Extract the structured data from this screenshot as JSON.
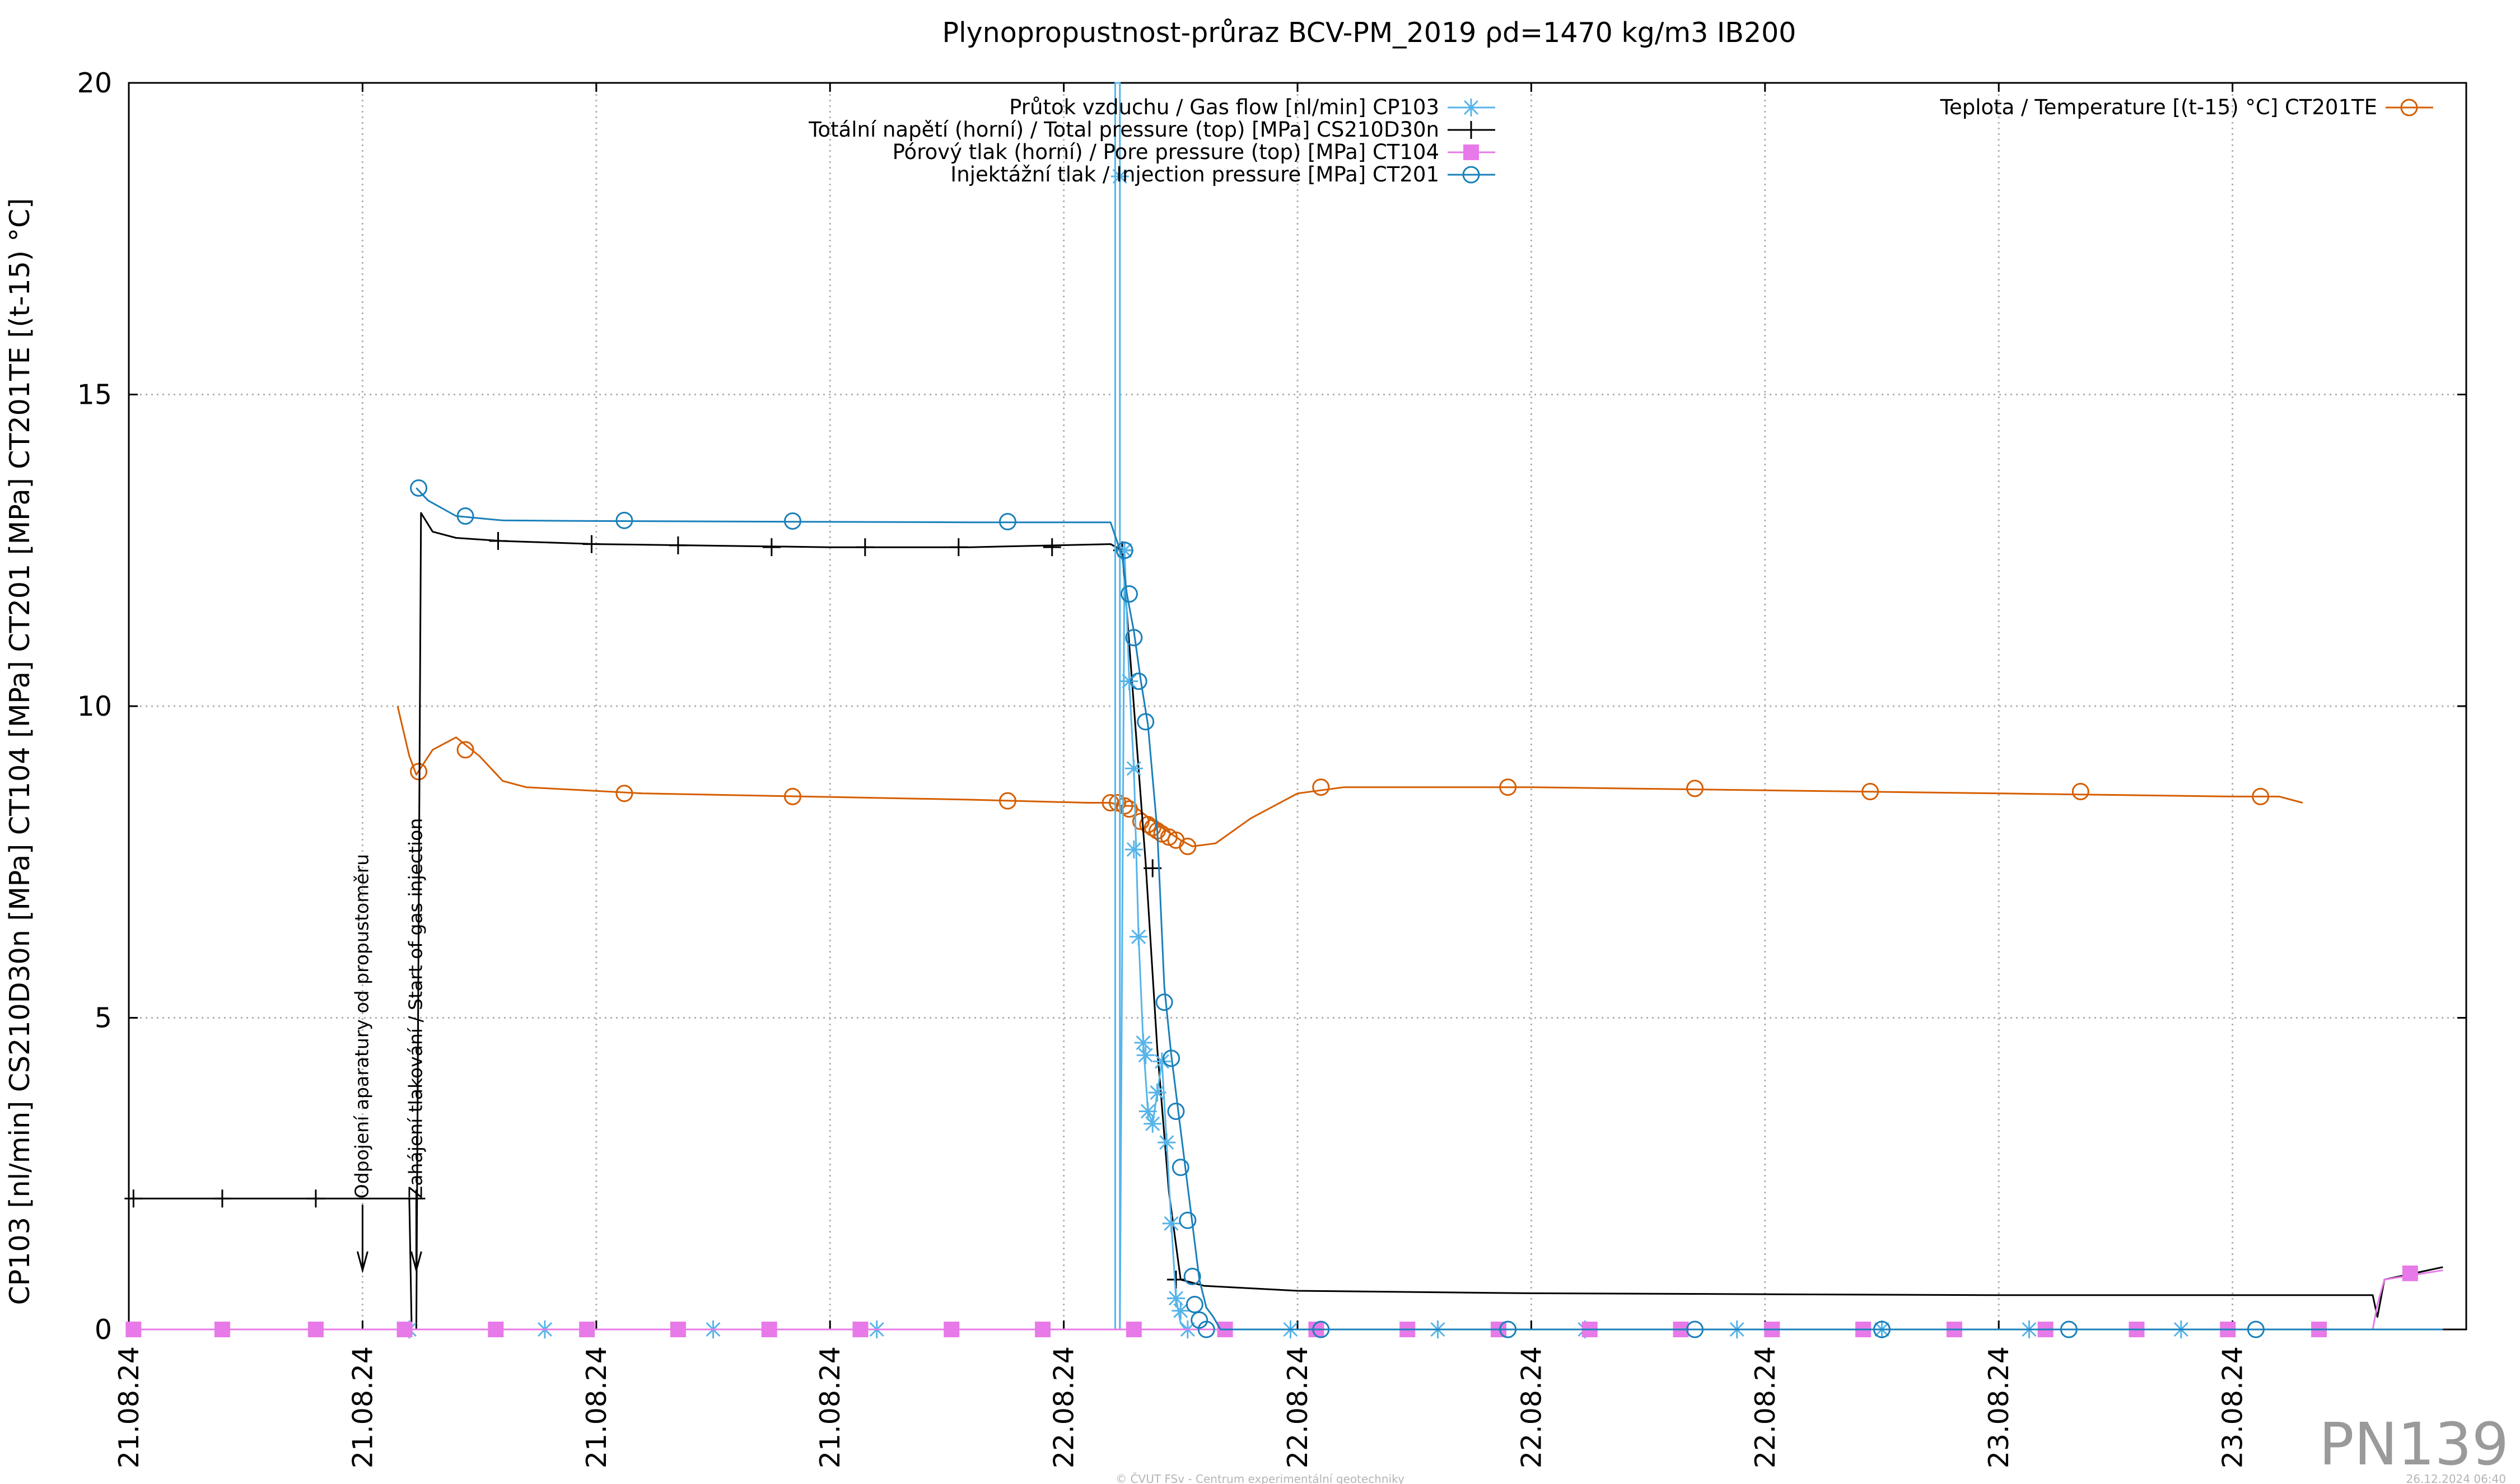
{
  "chart_data": {
    "type": "line",
    "title": "Plynopropustnost-průraz BCV-PM_2019 ρd=1470 kg/m3 IB200",
    "ylabel": "CP103 [nl/min] CS210D30n [MPa] CT104 [MPa] CT201 [MPa] CT201TE [(t-15) °C]",
    "xlabel": "",
    "ylim": [
      0,
      20
    ],
    "xlim": [
      0,
      10
    ],
    "grid": true,
    "legend_position": "top",
    "y_ticks": [
      "0",
      "5",
      "10",
      "15",
      "20"
    ],
    "x_tick_labels": [
      "21.08.24",
      "21.08.24",
      "21.08.24",
      "21.08.24",
      "22.08.24",
      "22.08.24",
      "22.08.24",
      "22.08.24",
      "23.08.24",
      "23.08.24"
    ],
    "x_tick_positions": [
      0,
      1,
      2,
      3,
      4,
      5,
      6,
      7,
      8,
      9
    ],
    "annotations": [
      {
        "text": "Odpojení aparatury od propustoměru",
        "x": 1.0
      },
      {
        "text": "Zahájení tlakování / Start of gas injection",
        "x": 1.23
      }
    ],
    "badge": "PN139",
    "footer_left": "© ČVUT FSv - Centrum experimentální geotechniky",
    "footer_right": "26.12.2024 06:40",
    "series": [
      {
        "name": "Průtok vzduchu / Gas flow [nl/min] CP103",
        "color": "#56b4e9",
        "marker": "star",
        "line": [
          [
            0,
            0
          ],
          [
            4.2,
            0
          ],
          [
            4.22,
            0
          ],
          [
            4.22,
            20
          ],
          [
            4.24,
            20
          ],
          [
            4.24,
            0
          ],
          [
            4.26,
            12.5
          ],
          [
            4.28,
            10.4
          ],
          [
            4.3,
            9
          ],
          [
            4.32,
            6.3
          ],
          [
            4.34,
            4.6
          ],
          [
            4.36,
            3.5
          ],
          [
            4.38,
            3.3
          ],
          [
            4.4,
            3.8
          ],
          [
            4.42,
            4.3
          ],
          [
            4.44,
            3
          ],
          [
            4.46,
            1.7
          ],
          [
            4.48,
            0.5
          ],
          [
            4.5,
            0.1
          ],
          [
            4.52,
            0
          ],
          [
            9.9,
            0
          ]
        ],
        "markers": [
          [
            1.2,
            0
          ],
          [
            1.78,
            0
          ],
          [
            2.5,
            0
          ],
          [
            3.2,
            0
          ],
          [
            4.26,
            12.5
          ],
          [
            4.24,
            18.5
          ],
          [
            4.28,
            10.4
          ],
          [
            4.3,
            9
          ],
          [
            4.3,
            7.7
          ],
          [
            4.32,
            6.3
          ],
          [
            4.34,
            4.6
          ],
          [
            4.35,
            4.4
          ],
          [
            4.36,
            3.5
          ],
          [
            4.38,
            3.3
          ],
          [
            4.4,
            3.8
          ],
          [
            4.42,
            4.3
          ],
          [
            4.44,
            3
          ],
          [
            4.46,
            1.7
          ],
          [
            4.48,
            0.5
          ],
          [
            4.5,
            0.3
          ],
          [
            4.53,
            0
          ],
          [
            4.97,
            0
          ],
          [
            5.6,
            0
          ],
          [
            6.23,
            0
          ],
          [
            6.88,
            0
          ],
          [
            7.5,
            0
          ],
          [
            8.13,
            0
          ],
          [
            8.78,
            0
          ]
        ]
      },
      {
        "name": "Totální napětí (horní) / Total pressure (top) [MPa] CS210D30n",
        "color": "#000000",
        "marker": "plus",
        "line": [
          [
            0,
            2.1
          ],
          [
            1.2,
            2.1
          ],
          [
            1.21,
            0
          ],
          [
            1.23,
            0
          ],
          [
            1.25,
            13.1
          ],
          [
            1.3,
            12.8
          ],
          [
            1.4,
            12.7
          ],
          [
            1.6,
            12.65
          ],
          [
            2.0,
            12.6
          ],
          [
            3.0,
            12.55
          ],
          [
            3.6,
            12.55
          ],
          [
            4.2,
            12.6
          ],
          [
            4.25,
            12.5
          ],
          [
            4.3,
            10
          ],
          [
            4.35,
            7.5
          ],
          [
            4.4,
            4.5
          ],
          [
            4.45,
            2.2
          ],
          [
            4.5,
            0.8
          ],
          [
            4.6,
            0.7
          ],
          [
            5.0,
            0.62
          ],
          [
            6.0,
            0.58
          ],
          [
            8.0,
            0.55
          ],
          [
            9.6,
            0.55
          ],
          [
            9.62,
            0.2
          ],
          [
            9.65,
            0.8
          ],
          [
            9.9,
            1.0
          ]
        ],
        "markers": [
          [
            0.02,
            2.1
          ],
          [
            0.4,
            2.1
          ],
          [
            0.8,
            2.1
          ],
          [
            1.23,
            2.1
          ],
          [
            1.58,
            12.65
          ],
          [
            1.98,
            12.6
          ],
          [
            2.35,
            12.58
          ],
          [
            2.75,
            12.55
          ],
          [
            3.15,
            12.55
          ],
          [
            3.55,
            12.55
          ],
          [
            3.95,
            12.55
          ],
          [
            4.25,
            12.5
          ],
          [
            4.38,
            7.4
          ],
          [
            4.48,
            0.8
          ]
        ]
      },
      {
        "name": "Pórový tlak (horní) / Pore pressure (top) [MPa] CT104",
        "color": "#e77ae8",
        "marker": "square",
        "line": [
          [
            0,
            0
          ],
          [
            9.6,
            0
          ],
          [
            9.62,
            0.4
          ],
          [
            9.65,
            0.8
          ],
          [
            9.9,
            0.95
          ]
        ],
        "markers": [
          [
            0.02,
            0
          ],
          [
            0.4,
            0
          ],
          [
            0.8,
            0
          ],
          [
            1.18,
            0
          ],
          [
            1.57,
            0
          ],
          [
            1.96,
            0
          ],
          [
            2.35,
            0
          ],
          [
            2.74,
            0
          ],
          [
            3.13,
            0
          ],
          [
            3.52,
            0
          ],
          [
            3.91,
            0
          ],
          [
            4.3,
            0
          ],
          [
            4.69,
            0
          ],
          [
            5.08,
            0
          ],
          [
            5.47,
            0
          ],
          [
            5.86,
            0
          ],
          [
            6.25,
            0
          ],
          [
            6.64,
            0
          ],
          [
            7.03,
            0
          ],
          [
            7.42,
            0
          ],
          [
            7.81,
            0
          ],
          [
            8.2,
            0
          ],
          [
            8.59,
            0
          ],
          [
            8.98,
            0
          ],
          [
            9.37,
            0
          ],
          [
            9.76,
            0.9
          ]
        ]
      },
      {
        "name": "Injektážní tlak / Injection pressure [MPa] CT201",
        "color": "#1a80bb",
        "marker": "circle",
        "line": [
          [
            1.23,
            13.5
          ],
          [
            1.28,
            13.3
          ],
          [
            1.4,
            13.05
          ],
          [
            1.6,
            12.98
          ],
          [
            2.0,
            12.97
          ],
          [
            2.8,
            12.96
          ],
          [
            3.6,
            12.95
          ],
          [
            4.2,
            12.95
          ],
          [
            4.25,
            12.4
          ],
          [
            4.27,
            11.8
          ],
          [
            4.3,
            11.2
          ],
          [
            4.33,
            10.4
          ],
          [
            4.36,
            9.7
          ],
          [
            4.4,
            8.0
          ],
          [
            4.43,
            5.5
          ],
          [
            4.46,
            4.4
          ],
          [
            4.49,
            3.5
          ],
          [
            4.52,
            2.6
          ],
          [
            4.55,
            1.7
          ],
          [
            4.58,
            0.8
          ],
          [
            4.61,
            0.35
          ],
          [
            4.64,
            0.2
          ],
          [
            4.67,
            0
          ],
          [
            9.9,
            0
          ]
        ],
        "markers": [
          [
            1.24,
            13.5
          ],
          [
            1.44,
            13.05
          ],
          [
            2.12,
            12.98
          ],
          [
            2.84,
            12.97
          ],
          [
            3.76,
            12.96
          ],
          [
            4.26,
            12.5
          ],
          [
            4.28,
            11.8
          ],
          [
            4.3,
            11.1
          ],
          [
            4.32,
            10.4
          ],
          [
            4.35,
            9.75
          ],
          [
            4.43,
            5.25
          ],
          [
            4.46,
            4.35
          ],
          [
            4.48,
            3.5
          ],
          [
            4.5,
            2.6
          ],
          [
            4.53,
            1.75
          ],
          [
            4.55,
            0.85
          ],
          [
            4.56,
            0.4
          ],
          [
            4.58,
            0.15
          ],
          [
            4.61,
            0
          ],
          [
            5.1,
            0
          ],
          [
            5.9,
            0
          ],
          [
            6.7,
            0
          ],
          [
            7.5,
            0
          ],
          [
            8.3,
            0
          ],
          [
            9.1,
            0
          ]
        ]
      },
      {
        "name": "Teplota / Temperature [(t-15) °C] CT201TE",
        "color": "#d55e00",
        "marker": "circle",
        "line": [
          [
            1.15,
            10.0
          ],
          [
            1.2,
            9.2
          ],
          [
            1.23,
            8.9
          ],
          [
            1.3,
            9.3
          ],
          [
            1.4,
            9.5
          ],
          [
            1.5,
            9.2
          ],
          [
            1.6,
            8.8
          ],
          [
            1.7,
            8.7
          ],
          [
            2.2,
            8.6
          ],
          [
            2.9,
            8.55
          ],
          [
            3.6,
            8.5
          ],
          [
            4.1,
            8.45
          ],
          [
            4.2,
            8.45
          ],
          [
            4.25,
            8.4
          ],
          [
            4.3,
            8.4
          ],
          [
            4.35,
            8.25
          ],
          [
            4.42,
            8.05
          ],
          [
            4.5,
            7.85
          ],
          [
            4.55,
            7.75
          ],
          [
            4.65,
            7.8
          ],
          [
            4.8,
            8.2
          ],
          [
            5.0,
            8.6
          ],
          [
            5.2,
            8.7
          ],
          [
            6.0,
            8.7
          ],
          [
            7.0,
            8.65
          ],
          [
            8.0,
            8.6
          ],
          [
            9.0,
            8.55
          ],
          [
            9.2,
            8.55
          ],
          [
            9.3,
            8.45
          ]
        ],
        "markers": [
          [
            1.24,
            8.95
          ],
          [
            1.44,
            9.3
          ],
          [
            2.12,
            8.6
          ],
          [
            2.84,
            8.55
          ],
          [
            3.76,
            8.48
          ],
          [
            4.2,
            8.45
          ],
          [
            4.23,
            8.45
          ],
          [
            4.26,
            8.4
          ],
          [
            4.28,
            8.35
          ],
          [
            4.33,
            8.15
          ],
          [
            4.36,
            8.1
          ],
          [
            4.38,
            8.05
          ],
          [
            4.4,
            8.0
          ],
          [
            4.42,
            7.95
          ],
          [
            4.45,
            7.9
          ],
          [
            4.48,
            7.85
          ],
          [
            4.53,
            7.75
          ],
          [
            5.1,
            8.7
          ],
          [
            5.9,
            8.7
          ],
          [
            6.7,
            8.68
          ],
          [
            7.45,
            8.63
          ],
          [
            8.35,
            8.63
          ],
          [
            9.12,
            8.55
          ]
        ]
      }
    ]
  }
}
